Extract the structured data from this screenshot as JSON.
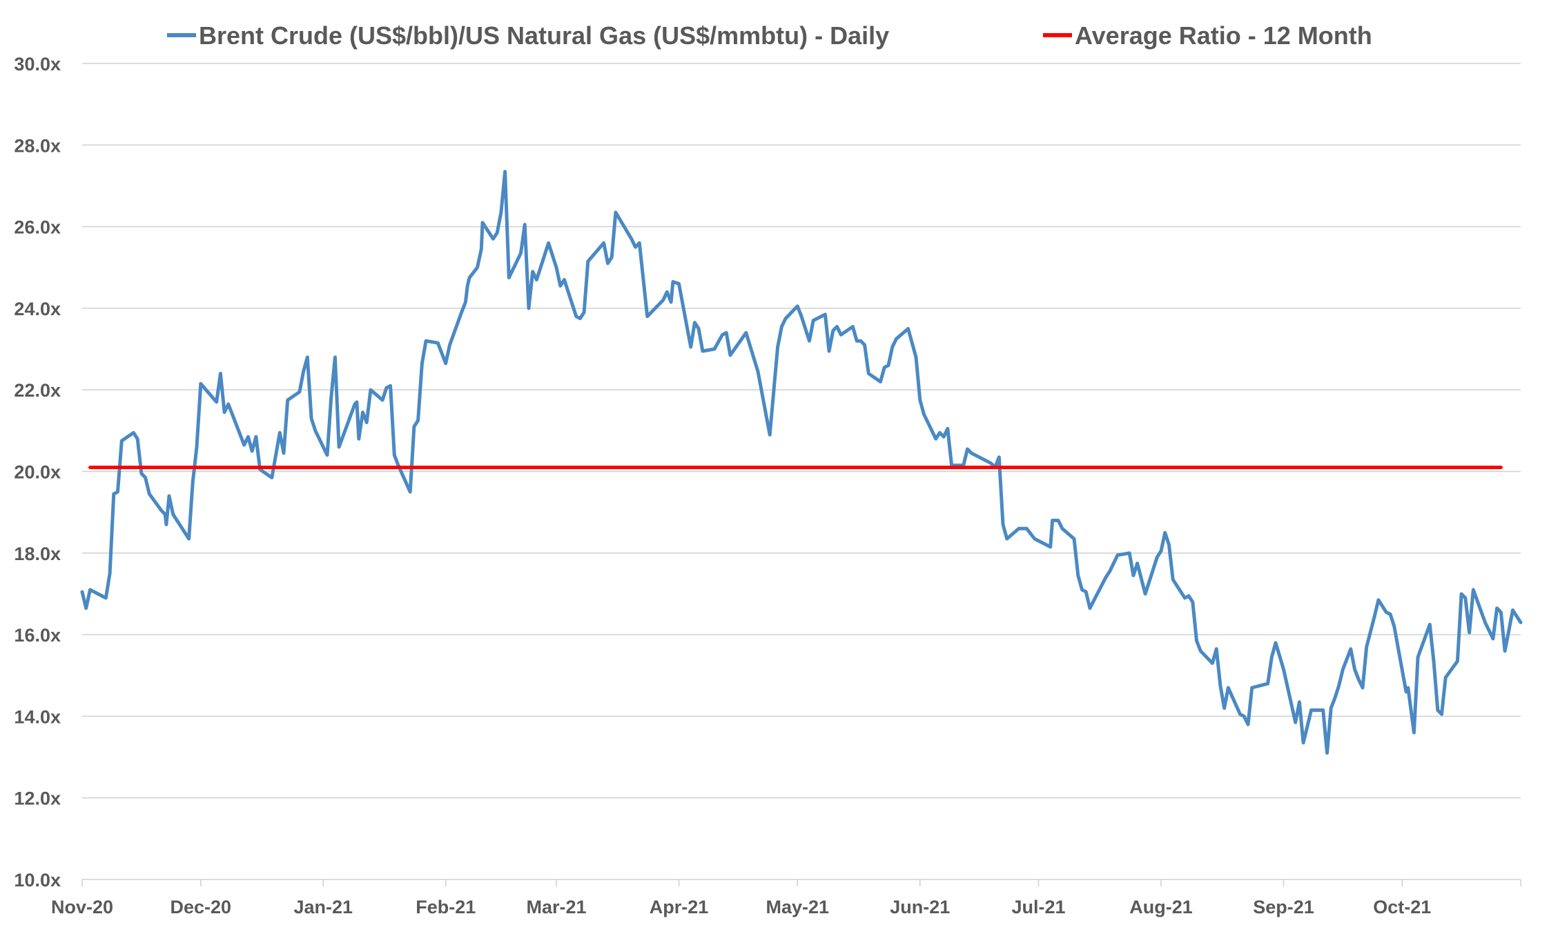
{
  "chart_data": {
    "type": "line",
    "title": "",
    "xlabel": "",
    "ylabel": "",
    "x_start_date": "2020-11-01",
    "x_unit": "days since start date",
    "x_range_days": [
      0,
      364
    ],
    "ylim": [
      10,
      30
    ],
    "y_ticks": [
      10,
      12,
      14,
      16,
      18,
      20,
      22,
      24,
      26,
      28,
      30
    ],
    "y_tick_labels": [
      "10.0x",
      "12.0x",
      "14.0x",
      "16.0x",
      "18.0x",
      "20.0x",
      "22.0x",
      "24.0x",
      "26.0x",
      "28.0x",
      "30.0x"
    ],
    "x_ticks_days": [
      0,
      30,
      61,
      92,
      120,
      151,
      181,
      212,
      242,
      273,
      304,
      334,
      364
    ],
    "x_tick_labels": [
      "Nov-20",
      "Dec-20",
      "Jan-21",
      "Feb-21",
      "Mar-21",
      "Apr-21",
      "May-21",
      "Jun-21",
      "Jul-21",
      "Aug-21",
      "Sep-21",
      "Oct-21",
      ""
    ],
    "grid": true,
    "legend_position": "top",
    "series": [
      {
        "name": "Brent Crude (US$/bbl)/US Natural Gas (US$/mmbtu) - Daily",
        "color": "#4a89c3",
        "points": [
          [
            0,
            17.05
          ],
          [
            1,
            16.65
          ],
          [
            2,
            17.1
          ],
          [
            6,
            16.9
          ],
          [
            7,
            17.5
          ],
          [
            8,
            19.45
          ],
          [
            9,
            19.5
          ],
          [
            10,
            20.75
          ],
          [
            13,
            20.95
          ],
          [
            14,
            20.8
          ],
          [
            15,
            19.95
          ],
          [
            16,
            19.85
          ],
          [
            17,
            19.45
          ],
          [
            20,
            19.05
          ],
          [
            21,
            18.95
          ],
          [
            21.3,
            18.7
          ],
          [
            22,
            19.4
          ],
          [
            23,
            18.95
          ],
          [
            24,
            18.8
          ],
          [
            27,
            18.35
          ],
          [
            28,
            19.75
          ],
          [
            29,
            20.6
          ],
          [
            30,
            22.15
          ],
          [
            34,
            21.7
          ],
          [
            35,
            22.4
          ],
          [
            36,
            21.45
          ],
          [
            37,
            21.65
          ],
          [
            41,
            20.65
          ],
          [
            42,
            20.85
          ],
          [
            43,
            20.5
          ],
          [
            44,
            20.85
          ],
          [
            45,
            20.05
          ],
          [
            48,
            19.85
          ],
          [
            50,
            20.95
          ],
          [
            51,
            20.45
          ],
          [
            52,
            21.75
          ],
          [
            55,
            21.95
          ],
          [
            56,
            22.45
          ],
          [
            57,
            22.8
          ],
          [
            58,
            21.3
          ],
          [
            59,
            21.0
          ],
          [
            62,
            20.4
          ],
          [
            63,
            21.8
          ],
          [
            64,
            22.8
          ],
          [
            65,
            20.6
          ],
          [
            69,
            21.65
          ],
          [
            69.5,
            21.7
          ],
          [
            70,
            20.8
          ],
          [
            71,
            21.45
          ],
          [
            72,
            21.2
          ],
          [
            73,
            22.0
          ],
          [
            76,
            21.75
          ],
          [
            77,
            22.05
          ],
          [
            78,
            22.1
          ],
          [
            79,
            20.4
          ],
          [
            80,
            20.15
          ],
          [
            83,
            19.5
          ],
          [
            84,
            21.1
          ],
          [
            85,
            21.25
          ],
          [
            86,
            22.65
          ],
          [
            87,
            23.2
          ],
          [
            90,
            23.15
          ],
          [
            92,
            22.65
          ],
          [
            93,
            23.1
          ],
          [
            96,
            23.9
          ],
          [
            97,
            24.15
          ],
          [
            97.5,
            24.55
          ],
          [
            98,
            24.75
          ],
          [
            100,
            25.0
          ],
          [
            101,
            25.45
          ],
          [
            101.3,
            26.1
          ],
          [
            104,
            25.7
          ],
          [
            105,
            25.85
          ],
          [
            106,
            26.35
          ],
          [
            107,
            27.35
          ],
          [
            108,
            24.75
          ],
          [
            111,
            25.35
          ],
          [
            112,
            26.05
          ],
          [
            113,
            24.0
          ],
          [
            114,
            24.9
          ],
          [
            115,
            24.7
          ],
          [
            118,
            25.6
          ],
          [
            120,
            25.0
          ],
          [
            121,
            24.55
          ],
          [
            122,
            24.7
          ],
          [
            125,
            23.8
          ],
          [
            126,
            23.75
          ],
          [
            127,
            23.9
          ],
          [
            128,
            25.15
          ],
          [
            132,
            25.6
          ],
          [
            133,
            25.1
          ],
          [
            134,
            25.25
          ],
          [
            135,
            26.35
          ],
          [
            139,
            25.7
          ],
          [
            140,
            25.5
          ],
          [
            141,
            25.6
          ],
          [
            143,
            23.8
          ],
          [
            147,
            24.2
          ],
          [
            148,
            24.4
          ],
          [
            149,
            24.15
          ],
          [
            149.5,
            24.65
          ],
          [
            151,
            24.6
          ],
          [
            154,
            23.05
          ],
          [
            155,
            23.65
          ],
          [
            156,
            23.5
          ],
          [
            157,
            22.95
          ],
          [
            160,
            23.0
          ],
          [
            162,
            23.35
          ],
          [
            163,
            23.4
          ],
          [
            164,
            22.85
          ],
          [
            168,
            23.4
          ],
          [
            171,
            22.45
          ],
          [
            174,
            20.9
          ],
          [
            176,
            23.05
          ],
          [
            177,
            23.55
          ],
          [
            178,
            23.75
          ],
          [
            181,
            24.05
          ],
          [
            182,
            23.8
          ],
          [
            184,
            23.2
          ],
          [
            185,
            23.7
          ],
          [
            188,
            23.85
          ],
          [
            189,
            22.95
          ],
          [
            190,
            23.45
          ],
          [
            191,
            23.55
          ],
          [
            192,
            23.35
          ],
          [
            195,
            23.55
          ],
          [
            196,
            23.2
          ],
          [
            197,
            23.2
          ],
          [
            198,
            23.1
          ],
          [
            199,
            22.4
          ],
          [
            202,
            22.2
          ],
          [
            203,
            22.55
          ],
          [
            204,
            22.6
          ],
          [
            205,
            23.05
          ],
          [
            206,
            23.25
          ],
          [
            209,
            23.5
          ],
          [
            211,
            22.8
          ],
          [
            212,
            21.75
          ],
          [
            213,
            21.4
          ],
          [
            216,
            20.8
          ],
          [
            217,
            20.95
          ],
          [
            218,
            20.85
          ],
          [
            219,
            21.05
          ],
          [
            220,
            20.15
          ],
          [
            223,
            20.15
          ],
          [
            224,
            20.55
          ],
          [
            225,
            20.45
          ],
          [
            226,
            20.4
          ],
          [
            230,
            20.2
          ],
          [
            231,
            20.1
          ],
          [
            232,
            20.35
          ],
          [
            233,
            18.7
          ],
          [
            234,
            18.35
          ],
          [
            237,
            18.6
          ],
          [
            239,
            18.6
          ],
          [
            241,
            18.35
          ],
          [
            245,
            18.15
          ],
          [
            245.5,
            18.8
          ],
          [
            247,
            18.8
          ],
          [
            248,
            18.6
          ],
          [
            251,
            18.35
          ],
          [
            252,
            17.45
          ],
          [
            253,
            17.1
          ],
          [
            254,
            17.05
          ],
          [
            255,
            16.65
          ],
          [
            259,
            17.4
          ],
          [
            260,
            17.55
          ],
          [
            262,
            17.95
          ],
          [
            265,
            18.0
          ],
          [
            266,
            17.45
          ],
          [
            267,
            17.75
          ],
          [
            269,
            17.0
          ],
          [
            272,
            17.9
          ],
          [
            273,
            18.05
          ],
          [
            274,
            18.5
          ],
          [
            275,
            18.2
          ],
          [
            276,
            17.35
          ],
          [
            279,
            16.9
          ],
          [
            280,
            16.95
          ],
          [
            281,
            16.8
          ],
          [
            282,
            15.85
          ],
          [
            283,
            15.6
          ],
          [
            286,
            15.3
          ],
          [
            287,
            15.65
          ],
          [
            288,
            14.75
          ],
          [
            289,
            14.2
          ],
          [
            290,
            14.7
          ],
          [
            293,
            14.05
          ],
          [
            294,
            14.0
          ],
          [
            295,
            13.8
          ],
          [
            296,
            14.7
          ],
          [
            300,
            14.8
          ],
          [
            301,
            15.45
          ],
          [
            302,
            15.8
          ],
          [
            304,
            15.15
          ],
          [
            307,
            13.85
          ],
          [
            308,
            14.35
          ],
          [
            309,
            13.35
          ],
          [
            311,
            14.15
          ],
          [
            314,
            14.15
          ],
          [
            315,
            13.1
          ],
          [
            316,
            14.2
          ],
          [
            317,
            14.45
          ],
          [
            318,
            14.75
          ],
          [
            319,
            15.15
          ],
          [
            321,
            15.65
          ],
          [
            322,
            15.15
          ],
          [
            323,
            14.9
          ],
          [
            324,
            14.7
          ],
          [
            325,
            15.7
          ],
          [
            327,
            16.45
          ],
          [
            328,
            16.85
          ],
          [
            329,
            16.7
          ],
          [
            330,
            16.55
          ],
          [
            331,
            16.5
          ],
          [
            332,
            16.2
          ],
          [
            335,
            14.6
          ],
          [
            335.5,
            14.7
          ],
          [
            337,
            13.6
          ],
          [
            338,
            15.45
          ],
          [
            341,
            16.25
          ],
          [
            342,
            15.35
          ],
          [
            343,
            14.15
          ],
          [
            344,
            14.05
          ],
          [
            345,
            14.95
          ],
          [
            348,
            15.35
          ],
          [
            349,
            17.0
          ],
          [
            350,
            16.9
          ],
          [
            351,
            16.05
          ],
          [
            352,
            17.1
          ],
          [
            355,
            16.3
          ],
          [
            357,
            15.9
          ],
          [
            358,
            16.65
          ],
          [
            359,
            16.55
          ],
          [
            360,
            15.6
          ],
          [
            362,
            16.6
          ],
          [
            364,
            16.3
          ]
        ]
      },
      {
        "name": "Average Ratio - 12 Month",
        "color": "#ff0000",
        "points": [
          [
            2,
            20.1
          ],
          [
            359,
            20.1
          ]
        ]
      }
    ]
  }
}
